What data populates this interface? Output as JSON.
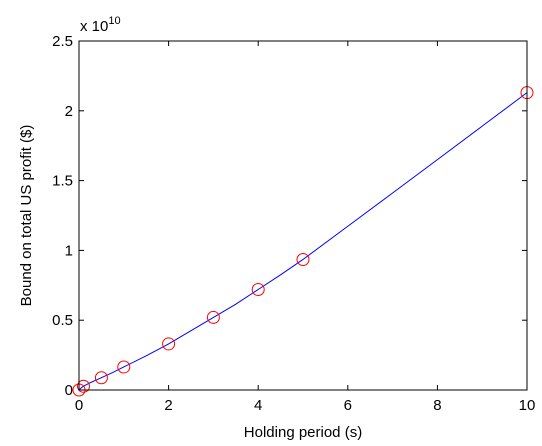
{
  "chart_data": {
    "type": "line",
    "xlabel": "Holding period (s)",
    "ylabel": "Bound on total US profit ($)",
    "y_multiplier_label": "x 10",
    "y_multiplier_exponent": "10",
    "xlim": [
      0,
      10
    ],
    "ylim": [
      0,
      25000000000
    ],
    "x_ticks": [
      0,
      2,
      4,
      6,
      8,
      10
    ],
    "x_tick_labels": [
      "0",
      "2",
      "4",
      "6",
      "8",
      "10"
    ],
    "y_ticks": [
      0,
      5000000000,
      10000000000,
      15000000000,
      20000000000,
      25000000000
    ],
    "y_tick_labels": [
      "0",
      "0.5",
      "1",
      "1.5",
      "2",
      "2.5"
    ],
    "grid": false,
    "series": [
      {
        "style": "line",
        "color": "#0000ff",
        "x": [
          0,
          0.05,
          0.1,
          0.25,
          0.5,
          0.75,
          1,
          1.5,
          2,
          2.5,
          3,
          3.5,
          4,
          4.5,
          5,
          6,
          7,
          8,
          9,
          10
        ],
        "y": [
          0,
          150000000,
          270000000,
          520000000,
          880000000,
          1250000000,
          1650000000,
          2450000000,
          3300000000,
          4250000000,
          5200000000,
          6150000000,
          7200000000,
          8250000000,
          9350000000,
          11730000000,
          14110000000,
          16500000000,
          18900000000,
          21300000000
        ]
      },
      {
        "style": "markers",
        "marker": "circle",
        "color": "#ff0000",
        "x": [
          0,
          0.1,
          0.5,
          1,
          2,
          3,
          4,
          5,
          10
        ],
        "y": [
          0,
          270000000,
          880000000,
          1650000000,
          3300000000,
          5200000000,
          7200000000,
          9350000000,
          21300000000
        ]
      }
    ]
  }
}
